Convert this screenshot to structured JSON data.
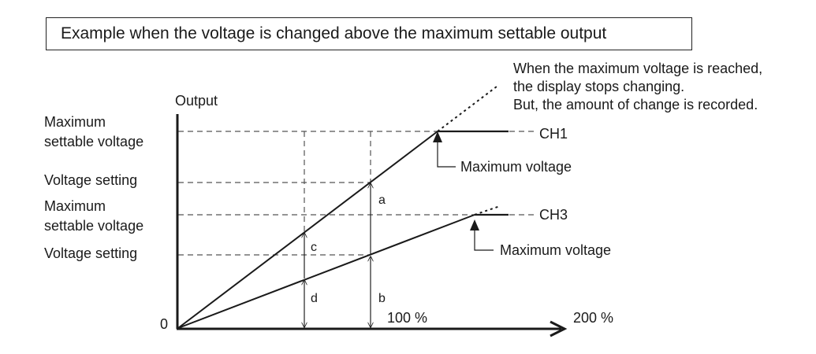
{
  "title": "Example when the voltage is changed above the maximum settable output",
  "note_lines": [
    "When the maximum voltage is reached,",
    "the display stops changing.",
    "But, the amount of change is recorded."
  ],
  "axis": {
    "y_label": "Output",
    "origin": "0",
    "x_ticks": [
      "100 %",
      "200 %"
    ]
  },
  "left_labels": {
    "ch1_max": "Maximum\nsettable voltage",
    "ch1_set": "Voltage setting",
    "ch3_max": "Maximum\nsettable voltage",
    "ch3_set": "Voltage setting"
  },
  "channels": {
    "ch1": "CH1",
    "ch3": "CH3"
  },
  "max_voltage_labels": {
    "ch1": "Maximum voltage",
    "ch3": "Maximum voltage"
  },
  "segment_labels": {
    "a": "a",
    "b": "b",
    "c": "c",
    "d": "d"
  }
}
